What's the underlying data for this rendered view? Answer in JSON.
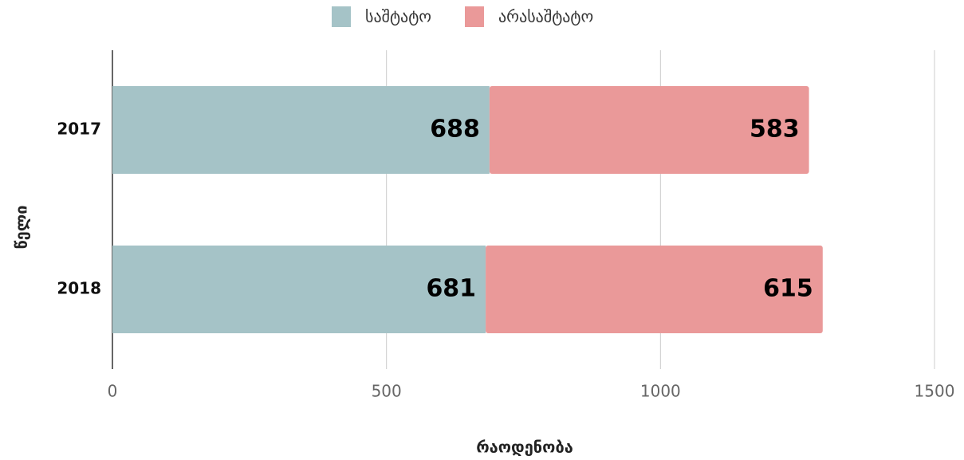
{
  "chart_data": {
    "type": "stacked-bar-horizontal",
    "categories": [
      "2017",
      "2018"
    ],
    "series": [
      {
        "name": "საშტატო",
        "color": "#a5c3c7",
        "values": [
          688,
          681
        ]
      },
      {
        "name": "არასაშტატო",
        "color": "#ea9999",
        "values": [
          583,
          615
        ]
      }
    ],
    "xlim": [
      0,
      1500
    ],
    "xticks": [
      0,
      500,
      1000,
      1500
    ],
    "xlabel": "რაოდენობა",
    "ylabel": "წელი",
    "grid": true,
    "legend": "top"
  }
}
